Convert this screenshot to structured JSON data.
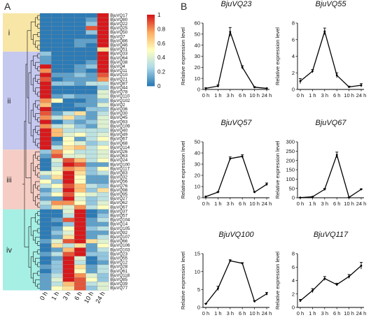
{
  "figure": {
    "panel_a_letter": "A",
    "panel_b_letter": "B",
    "time_points": [
      "0 h",
      "1 h",
      "3 h",
      "6 h",
      "10 h",
      "24 h"
    ],
    "y_axis_label": "Relative expression level"
  },
  "heatmap": {
    "type": "heatmap",
    "genes": [
      "BjuVQ17",
      "BjuVQ80",
      "BjuVQ22",
      "BjuVQ25",
      "BjuVQ50",
      "BjuVQ7",
      "BjuVQ86",
      "BjuVQ46",
      "BjuVQ51",
      "BjuVQ33",
      "BjuVQ64",
      "BjuVQ38",
      "BjuVQ4",
      "BjuVQ11",
      "BjuVQ10",
      "BjuVQ21",
      "BjuVQ87",
      "BjuVQ44",
      "BjuVQ78",
      "BjuVQ110",
      "BjuVQ102",
      "BjuVQ2",
      "BjuVQ36",
      "BjuVQ30",
      "BjuVQ45",
      "BjuVQ93",
      "BjuVQ109",
      "BjuVQ40",
      "BjuVQ49",
      "BjuVQ67",
      "BjuVQ68",
      "BjuVQ114",
      "BjuVQ26",
      "BjuVQ63",
      "BjuVQ24",
      "BjuVQ100",
      "BjuVQ117",
      "BjuVQ83",
      "BjuVQ32",
      "BjuVQ56",
      "BjuVQ76",
      "BjuVQ98",
      "BjuVQ95",
      "BjuVQ27",
      "BjuVQ62",
      "BjuVQ67",
      "BjuVQ37",
      "BjuVQ57",
      "BjuVQ104",
      "BjuVQ14",
      "BjuVQ105",
      "BjuVQ92",
      "BjuVQ107",
      "BjuVQ66",
      "BjuVQ106",
      "BjuVQ103",
      "BjuVQ23",
      "BjuVQ55",
      "BjuVQ12",
      "BjuVQ28",
      "BjuVQ61",
      "BjuVQ118",
      "BjuVQ85",
      "BjuVQ39",
      "BjuVQ77"
    ],
    "columns": [
      "0 h",
      "1 h",
      "3 h",
      "6 h",
      "10 h",
      "24 h"
    ],
    "colorscale": [
      "#2c7bb6",
      "#abd9e9",
      "#ffffbf",
      "#fdae61",
      "#d7191c"
    ],
    "colorbar_ticks": [
      "1",
      "0.8",
      "0.6",
      "0.4",
      "0.2",
      "0"
    ],
    "groups": [
      "i",
      "ii",
      "iii",
      "iv"
    ],
    "group_colors": [
      "#f8e6a6",
      "#c5c8ef",
      "#f5cdc4",
      "#a6efe4"
    ],
    "group_row_ranges": [
      [
        0,
        9
      ],
      [
        9,
        32
      ],
      [
        32,
        46
      ],
      [
        46,
        65
      ]
    ],
    "values": [
      [
        0,
        0,
        0,
        0,
        0,
        1
      ],
      [
        0,
        0,
        0,
        0,
        0.1,
        1
      ],
      [
        0,
        0,
        0,
        0,
        0.2,
        1
      ],
      [
        0,
        0,
        0,
        0,
        0.9,
        1
      ],
      [
        0,
        0,
        0,
        0,
        0.2,
        1
      ],
      [
        0,
        0,
        0,
        0,
        0,
        1
      ],
      [
        0,
        0,
        0,
        0.1,
        0.1,
        1
      ],
      [
        0,
        0,
        0,
        0.1,
        0,
        1
      ],
      [
        0,
        0,
        0,
        0,
        0,
        0.6
      ],
      [
        0.2,
        0,
        0,
        0,
        0,
        1
      ],
      [
        0.1,
        0,
        0,
        0,
        0,
        1
      ],
      [
        0.1,
        0,
        0,
        0,
        0.1,
        1
      ],
      [
        1,
        0,
        0,
        0.1,
        0.2,
        1
      ],
      [
        0.8,
        0,
        0,
        0.1,
        0,
        1
      ],
      [
        1,
        0.1,
        0.1,
        0.2,
        0.1,
        0.9
      ],
      [
        0.9,
        0,
        0.1,
        0.1,
        0.1,
        0.8
      ],
      [
        1,
        0.2,
        0.2,
        0.1,
        0.3,
        0.3
      ],
      [
        1,
        0,
        0,
        0,
        0,
        0.2
      ],
      [
        1,
        0,
        0,
        0,
        0,
        0.4
      ],
      [
        1,
        0.1,
        0.2,
        0.1,
        0.1,
        0.4
      ],
      [
        0.8,
        0.5,
        0,
        0,
        0.1,
        0.2
      ],
      [
        0.7,
        0,
        0,
        0.1,
        0.1,
        0.4
      ],
      [
        1,
        0,
        0,
        0,
        0.2,
        0.2
      ],
      [
        0.9,
        0.1,
        0.3,
        0.6,
        0.1,
        0.3
      ],
      [
        0.8,
        0.3,
        0.6,
        0.2,
        0.1,
        0.4
      ],
      [
        1,
        0,
        0.2,
        0.1,
        0.2,
        0.4
      ],
      [
        0.8,
        0.3,
        0.4,
        0.2,
        0.1,
        0.4
      ],
      [
        1,
        0.7,
        0.3,
        0.3,
        0.3,
        0.3
      ],
      [
        1,
        0.7,
        0.4,
        0.5,
        0.3,
        0.4
      ],
      [
        1,
        0,
        0.5,
        0.1,
        0.3,
        0.5
      ],
      [
        1,
        0.1,
        0.5,
        0.4,
        0.2,
        0.3
      ],
      [
        1,
        0.3,
        0.6,
        0.7,
        0.3,
        0.5
      ],
      [
        0.2,
        0.8,
        0.5,
        0.3,
        0.3,
        0.4
      ],
      [
        0.1,
        0.9,
        0.4,
        0.4,
        0.3,
        0.4
      ],
      [
        0,
        0.4,
        0.9,
        0.7,
        0.3,
        0.5
      ],
      [
        0,
        0.3,
        1,
        0.9,
        0.1,
        0.1
      ],
      [
        0,
        0.4,
        0.8,
        0.7,
        0.2,
        0.5
      ],
      [
        0.4,
        0.5,
        1,
        0.6,
        0.2,
        0.3
      ],
      [
        0.2,
        0.6,
        1,
        0.5,
        0.1,
        0.1
      ],
      [
        0.5,
        0.2,
        1,
        0.5,
        0.1,
        0.1
      ],
      [
        0.3,
        0.5,
        0.9,
        0.7,
        0.3,
        0.2
      ],
      [
        0.1,
        0.3,
        1,
        0.7,
        0.2,
        0.6
      ],
      [
        0.2,
        0.5,
        0.9,
        0.5,
        0.4,
        0.3
      ],
      [
        0.1,
        0.1,
        1,
        0.4,
        0.2,
        0.3
      ],
      [
        0.3,
        0.8,
        0.8,
        0.5,
        0.2,
        0.4
      ],
      [
        0.2,
        0.6,
        0.4,
        0.8,
        0.3,
        0.5
      ],
      [
        0,
        0,
        0.4,
        1,
        0,
        0.1
      ],
      [
        0,
        0,
        0.3,
        1,
        0,
        0.2
      ],
      [
        0,
        0.1,
        0.9,
        1,
        0.1,
        0.3
      ],
      [
        0,
        0,
        0.2,
        1,
        0.1,
        0.1
      ],
      [
        0,
        0.1,
        0.5,
        1,
        0.2,
        0.3
      ],
      [
        0,
        0.2,
        0.4,
        1,
        0.1,
        0.1
      ],
      [
        0,
        0.1,
        0.6,
        1,
        0.1,
        0.3
      ],
      [
        0.1,
        0.4,
        0.9,
        1,
        0.6,
        0.4
      ],
      [
        0,
        0.6,
        0.3,
        0.6,
        0.1,
        0.5
      ],
      [
        0,
        0.1,
        0.7,
        1,
        0.1,
        0.3
      ],
      [
        0.1,
        0.3,
        0.9,
        1,
        0.2,
        0.2
      ],
      [
        0,
        0.1,
        1,
        0.4,
        0,
        0.2
      ],
      [
        0,
        0.2,
        1,
        0.3,
        0,
        0.1
      ],
      [
        0.1,
        0.2,
        1,
        0.6,
        0.1,
        0.3
      ],
      [
        0,
        0.2,
        1,
        0.5,
        0.1,
        0.3
      ],
      [
        0.1,
        0.3,
        1,
        0.8,
        0.4,
        0.2
      ],
      [
        0.1,
        0.4,
        1,
        0.9,
        0.5,
        0.2
      ],
      [
        0.1,
        0.3,
        0.7,
        0.9,
        0.3,
        0.4
      ],
      [
        0.1,
        0.5,
        0.6,
        0.9,
        0.2,
        0.4
      ]
    ]
  },
  "chart_data": [
    {
      "type": "line",
      "title": "BjuVQ23",
      "x": [
        "0 h",
        "1 h",
        "3 h",
        "6 h",
        "10 h",
        "24 h"
      ],
      "values": [
        1,
        3,
        52,
        20,
        2,
        1
      ],
      "errors": [
        0.5,
        1,
        4,
        1.5,
        0.5,
        0.3
      ],
      "ylim": [
        0,
        60
      ],
      "yticks": [
        0,
        10,
        20,
        30,
        40,
        50,
        60
      ],
      "xlabel": "",
      "ylabel": "Relative expression level"
    },
    {
      "type": "line",
      "title": "BjuVQ55",
      "x": [
        "0 h",
        "1 h",
        "3 h",
        "6 h",
        "10 h",
        "24 h"
      ],
      "values": [
        1,
        2.2,
        7,
        1.7,
        0.3,
        0.5
      ],
      "errors": [
        0.3,
        0.2,
        0.4,
        0.3,
        0.1,
        0.2
      ],
      "ylim": [
        0,
        8
      ],
      "yticks": [
        0,
        2,
        4,
        6,
        8
      ],
      "xlabel": "",
      "ylabel": "Relative expression level"
    },
    {
      "type": "line",
      "title": "BjuVQ57",
      "x": [
        "0 h",
        "1 h",
        "3 h",
        "6 h",
        "10 h",
        "24 h"
      ],
      "values": [
        1,
        5,
        35,
        37,
        5,
        12
      ],
      "errors": [
        0.3,
        0.5,
        1.5,
        1.5,
        0.5,
        1.2
      ],
      "ylim": [
        0,
        50
      ],
      "yticks": [
        0,
        10,
        20,
        30,
        40,
        50
      ],
      "xlabel": "",
      "ylabel": "Relative expression level"
    },
    {
      "type": "line",
      "title": "BjuVQ67",
      "x": [
        "0 h",
        "1 h",
        "3 h",
        "6 h",
        "10 h",
        "24 h"
      ],
      "values": [
        1,
        5,
        45,
        230,
        2,
        45
      ],
      "errors": [
        0.5,
        1,
        5,
        15,
        1,
        3
      ],
      "ylim": [
        0,
        300
      ],
      "yticks": [
        0,
        50,
        100,
        150,
        200,
        250,
        300
      ],
      "xlabel": "",
      "ylabel": "Relative expression level"
    },
    {
      "type": "line",
      "title": "BjuVQ100",
      "x": [
        "0 h",
        "1 h",
        "3 h",
        "6 h",
        "10 h",
        "24 h"
      ],
      "values": [
        1,
        5.3,
        13,
        12.3,
        1.7,
        3.8
      ],
      "errors": [
        0.1,
        0.6,
        0.3,
        0.2,
        0.2,
        0.4
      ],
      "ylim": [
        0,
        15
      ],
      "yticks": [
        0,
        5,
        10,
        15
      ],
      "xlabel": "",
      "ylabel": "Relative expression level"
    },
    {
      "type": "line",
      "title": "BjuVQ117",
      "x": [
        "0 h",
        "1 h",
        "3 h",
        "6 h",
        "10 h",
        "24 h"
      ],
      "values": [
        1,
        2.5,
        4.3,
        3.4,
        4.6,
        6.2
      ],
      "errors": [
        0.2,
        0.3,
        0.3,
        0.2,
        0.3,
        0.5
      ],
      "ylim": [
        0,
        8
      ],
      "yticks": [
        0,
        2,
        4,
        6,
        8
      ],
      "xlabel": "",
      "ylabel": "Relative expression level"
    }
  ]
}
